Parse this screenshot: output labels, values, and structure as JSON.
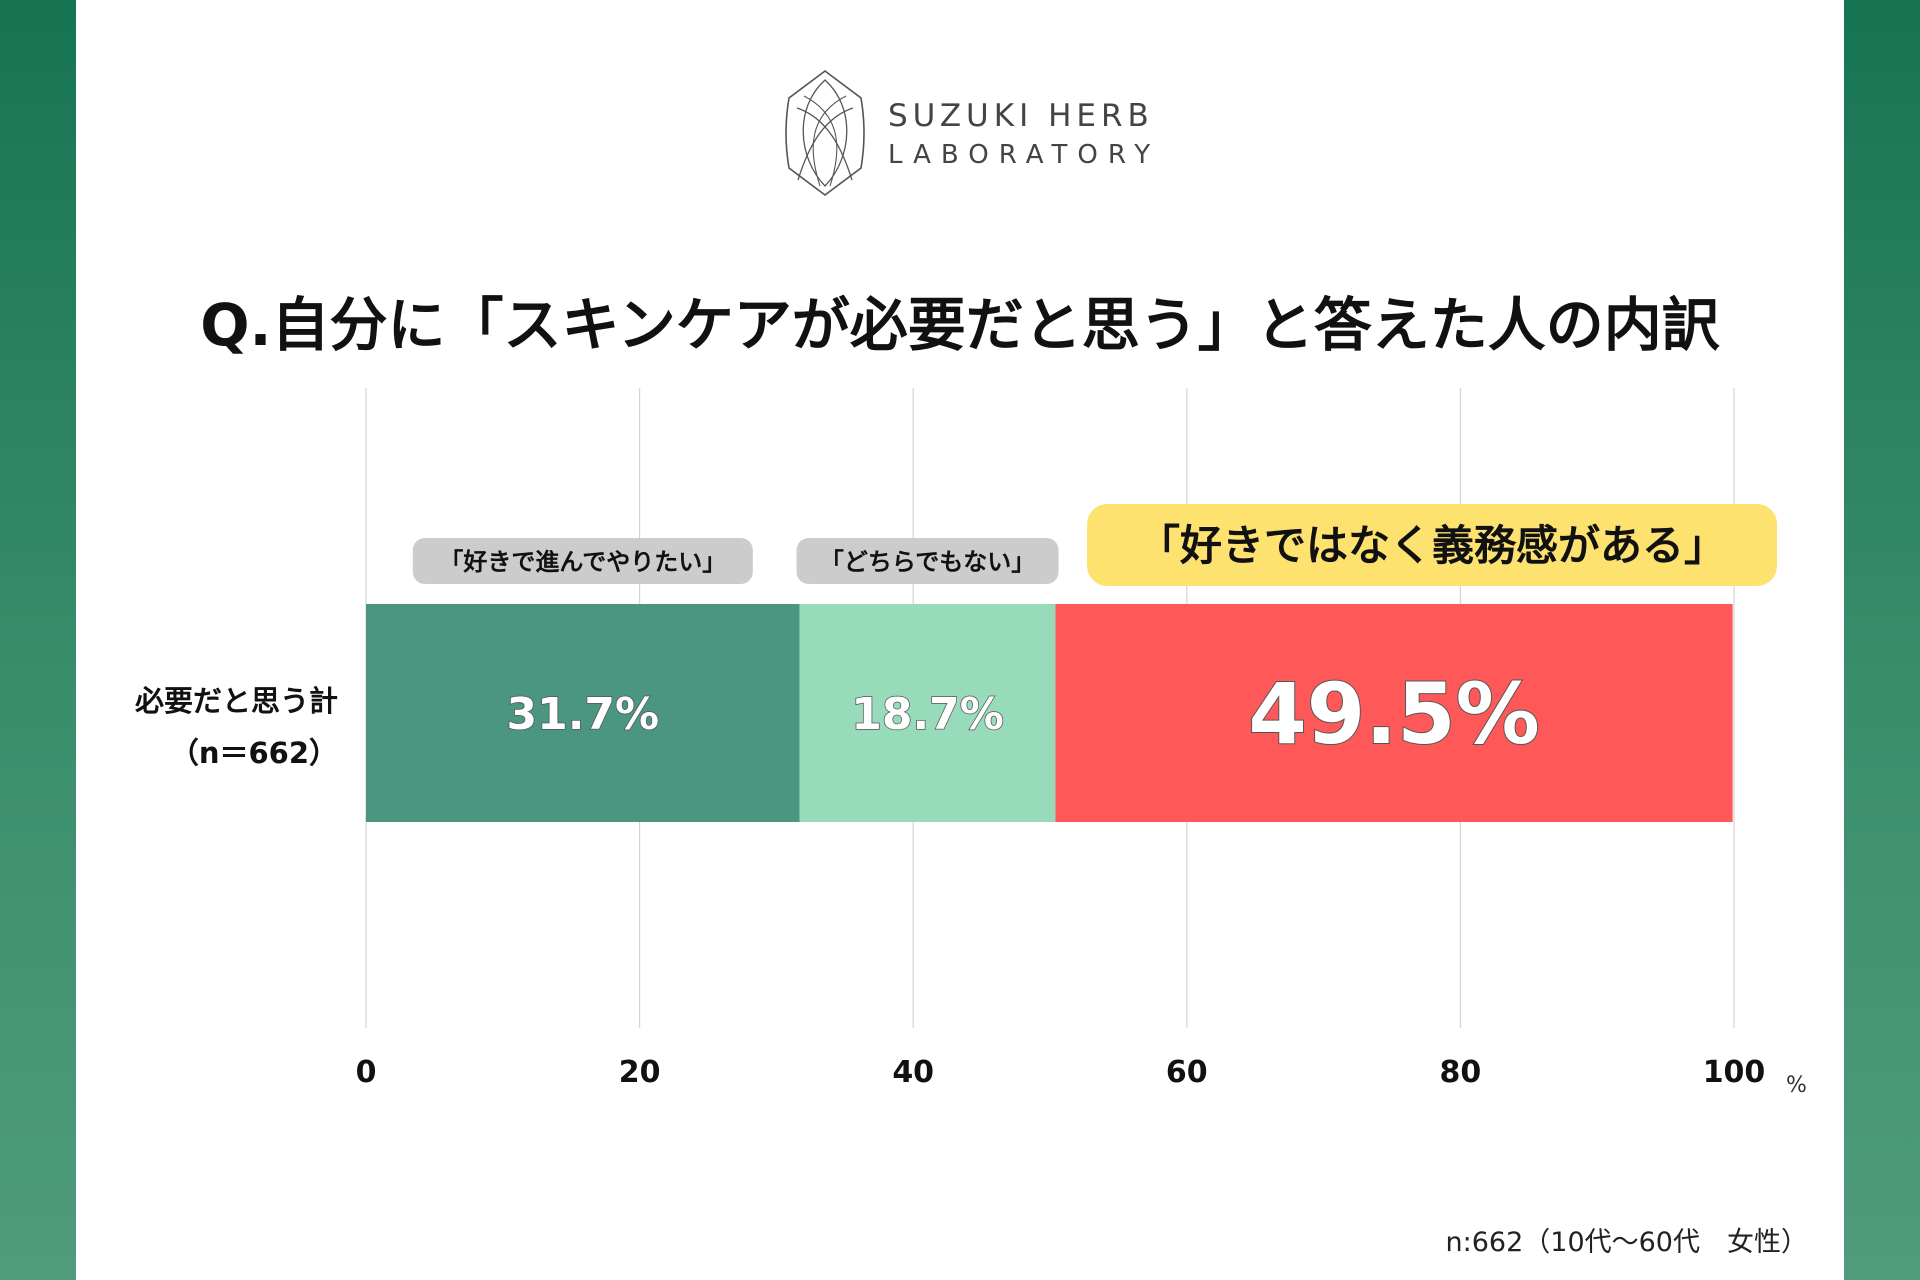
{
  "logo": {
    "line1": "SUZUKI HERB",
    "line2": "LABORATORY"
  },
  "title": "Q.自分に「スキンケアが必要だと思う」と答えた人の内訳",
  "footnote": "n:662（10代〜60代　女性）",
  "chart_data": {
    "type": "bar",
    "orientation": "horizontal",
    "stacked": true,
    "categories": [
      "必要だと思う計（n＝662）"
    ],
    "category_label_lines": [
      "必要だと思う計",
      "（n＝662）"
    ],
    "series": [
      {
        "name": "「好きで進んでやりたい」",
        "values": [
          31.7
        ],
        "label": "31.7%",
        "color": "#4a9680",
        "label_color": "#ffffff"
      },
      {
        "name": "「どちらでもない」",
        "values": [
          18.7
        ],
        "label": "18.7%",
        "color": "#98dbbb",
        "label_color": "#ffffff"
      },
      {
        "name": "「好きではなく義務感がある」",
        "values": [
          49.5
        ],
        "label": "49.5%",
        "color": "#fe5958",
        "label_color": "#ffffff",
        "highlight": true
      }
    ],
    "series_label_style": {
      "normal_bg": "#cccccc",
      "highlight_bg": "#fde270"
    },
    "xlim": [
      0,
      100
    ],
    "xticks": [
      "0",
      "20",
      "40",
      "60",
      "80",
      "100"
    ],
    "xunit": "%",
    "grid": true
  }
}
